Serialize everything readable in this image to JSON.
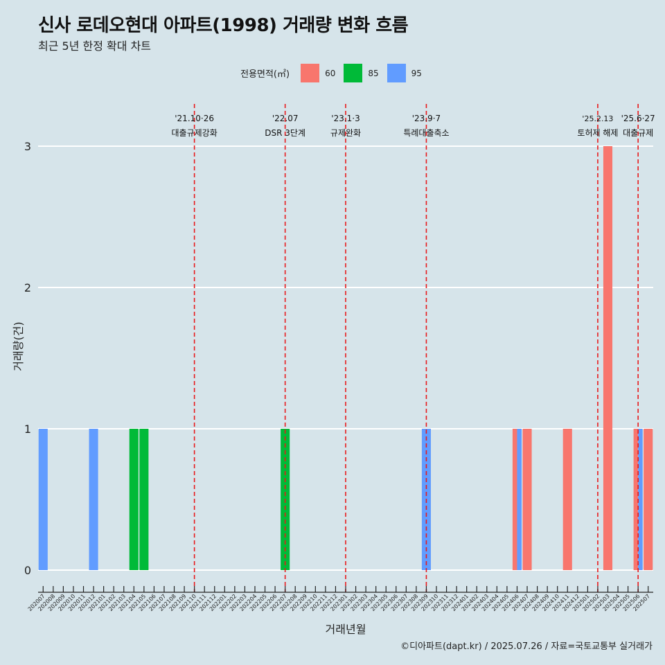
{
  "title": "신사 로데오현대 아파트(1998) 거래량 변화 흐름",
  "subtitle": "최근 5년 한정 확대 차트",
  "caption": "©디아파트(dapt.kr) / 2025.07.26 / 자료=국토교통부 실거래가",
  "legend": {
    "title": "전용면적(㎡)",
    "items": [
      {
        "label": "60",
        "color": "#f8766d"
      },
      {
        "label": "85",
        "color": "#00ba38"
      },
      {
        "label": "95",
        "color": "#619cff"
      }
    ]
  },
  "chart_data": {
    "type": "bar",
    "xlabel": "거래년월",
    "ylabel": "거래량(건)",
    "ylim": [
      0,
      3
    ],
    "yticks": [
      "0",
      "1",
      "2",
      "3"
    ],
    "grid": true,
    "legend_position": "top",
    "categories": [
      "202007",
      "202008",
      "202009",
      "202010",
      "202011",
      "202012",
      "202101",
      "202102",
      "202103",
      "202104",
      "202105",
      "202106",
      "202107",
      "202108",
      "202109",
      "202110",
      "202111",
      "202112",
      "202201",
      "202202",
      "202203",
      "202204",
      "202205",
      "202206",
      "202207",
      "202208",
      "202209",
      "202210",
      "202211",
      "202212",
      "202301",
      "202302",
      "202303",
      "202304",
      "202305",
      "202306",
      "202307",
      "202308",
      "202309",
      "202310",
      "202311",
      "202312",
      "202401",
      "202402",
      "202403",
      "202404",
      "202405",
      "202406",
      "202407",
      "202408",
      "202409",
      "202410",
      "202411",
      "202412",
      "202501",
      "202502",
      "202503",
      "202504",
      "202505",
      "202506",
      "202507"
    ],
    "series": [
      {
        "name": "60",
        "color": "#f8766d",
        "points": [
          {
            "x": "202406",
            "y": 1
          },
          {
            "x": "202407",
            "y": 1
          },
          {
            "x": "202411",
            "y": 1
          },
          {
            "x": "202503",
            "y": 3
          },
          {
            "x": "202506",
            "y": 1
          },
          {
            "x": "202507",
            "y": 1
          }
        ]
      },
      {
        "name": "85",
        "color": "#00ba38",
        "points": [
          {
            "x": "202104",
            "y": 1
          },
          {
            "x": "202105",
            "y": 1
          },
          {
            "x": "202207",
            "y": 1
          }
        ]
      },
      {
        "name": "95",
        "color": "#619cff",
        "points": [
          {
            "x": "202007",
            "y": 1
          },
          {
            "x": "202012",
            "y": 1
          },
          {
            "x": "202309",
            "y": 1
          },
          {
            "x": "202406",
            "y": 1
          },
          {
            "x": "202506",
            "y": 1
          }
        ]
      }
    ],
    "annotations": [
      {
        "date": "'21.10·26",
        "label": "대출규제강화",
        "x": "202110"
      },
      {
        "date": "'22.07",
        "label": "DSR 3단계",
        "x": "202207"
      },
      {
        "date": "'23.1·3",
        "label": "규제완화",
        "x": "202301"
      },
      {
        "date": "'23.9·7",
        "label": "특례대출축소",
        "x": "202309"
      },
      {
        "date": "'25.2.13",
        "label": "토허제 해제",
        "x": "202502"
      },
      {
        "date": "'25.6·27",
        "label": "대출규제",
        "x": "202506"
      }
    ]
  }
}
